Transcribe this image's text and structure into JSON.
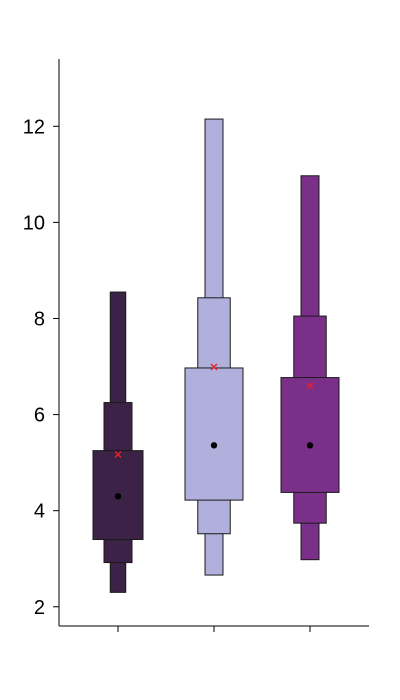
{
  "chart_data": {
    "type": "boxen",
    "title": "",
    "xlabel": "",
    "ylabel": "",
    "ylim": [
      1.6,
      13.4
    ],
    "y_ticks": [
      2,
      4,
      6,
      8,
      10,
      12
    ],
    "y_tick_labels": [
      "2",
      "4",
      "6",
      "8",
      "10",
      "12"
    ],
    "x_tick_labels": [
      "",
      "",
      ""
    ],
    "grid": false,
    "legend": "none",
    "median_marker": "black dot",
    "mean_marker": "red x",
    "series": [
      {
        "color": "#3b2246",
        "levels": [
          {
            "low": 3.4,
            "high": 5.25
          },
          {
            "low": 2.92,
            "high": 6.25
          },
          {
            "low": 2.3,
            "high": 8.55
          }
        ],
        "median": 4.3,
        "mean": 5.17
      },
      {
        "color": "#b1b0dc",
        "levels": [
          {
            "low": 4.22,
            "high": 6.97
          },
          {
            "low": 3.52,
            "high": 8.43
          },
          {
            "low": 2.66,
            "high": 12.15
          }
        ],
        "median": 5.36,
        "mean": 6.99
      },
      {
        "color": "#7a3089",
        "levels": [
          {
            "low": 4.38,
            "high": 6.77
          },
          {
            "low": 3.74,
            "high": 8.05
          },
          {
            "low": 2.98,
            "high": 10.97
          }
        ],
        "median": 5.36,
        "mean": 6.6
      }
    ]
  }
}
